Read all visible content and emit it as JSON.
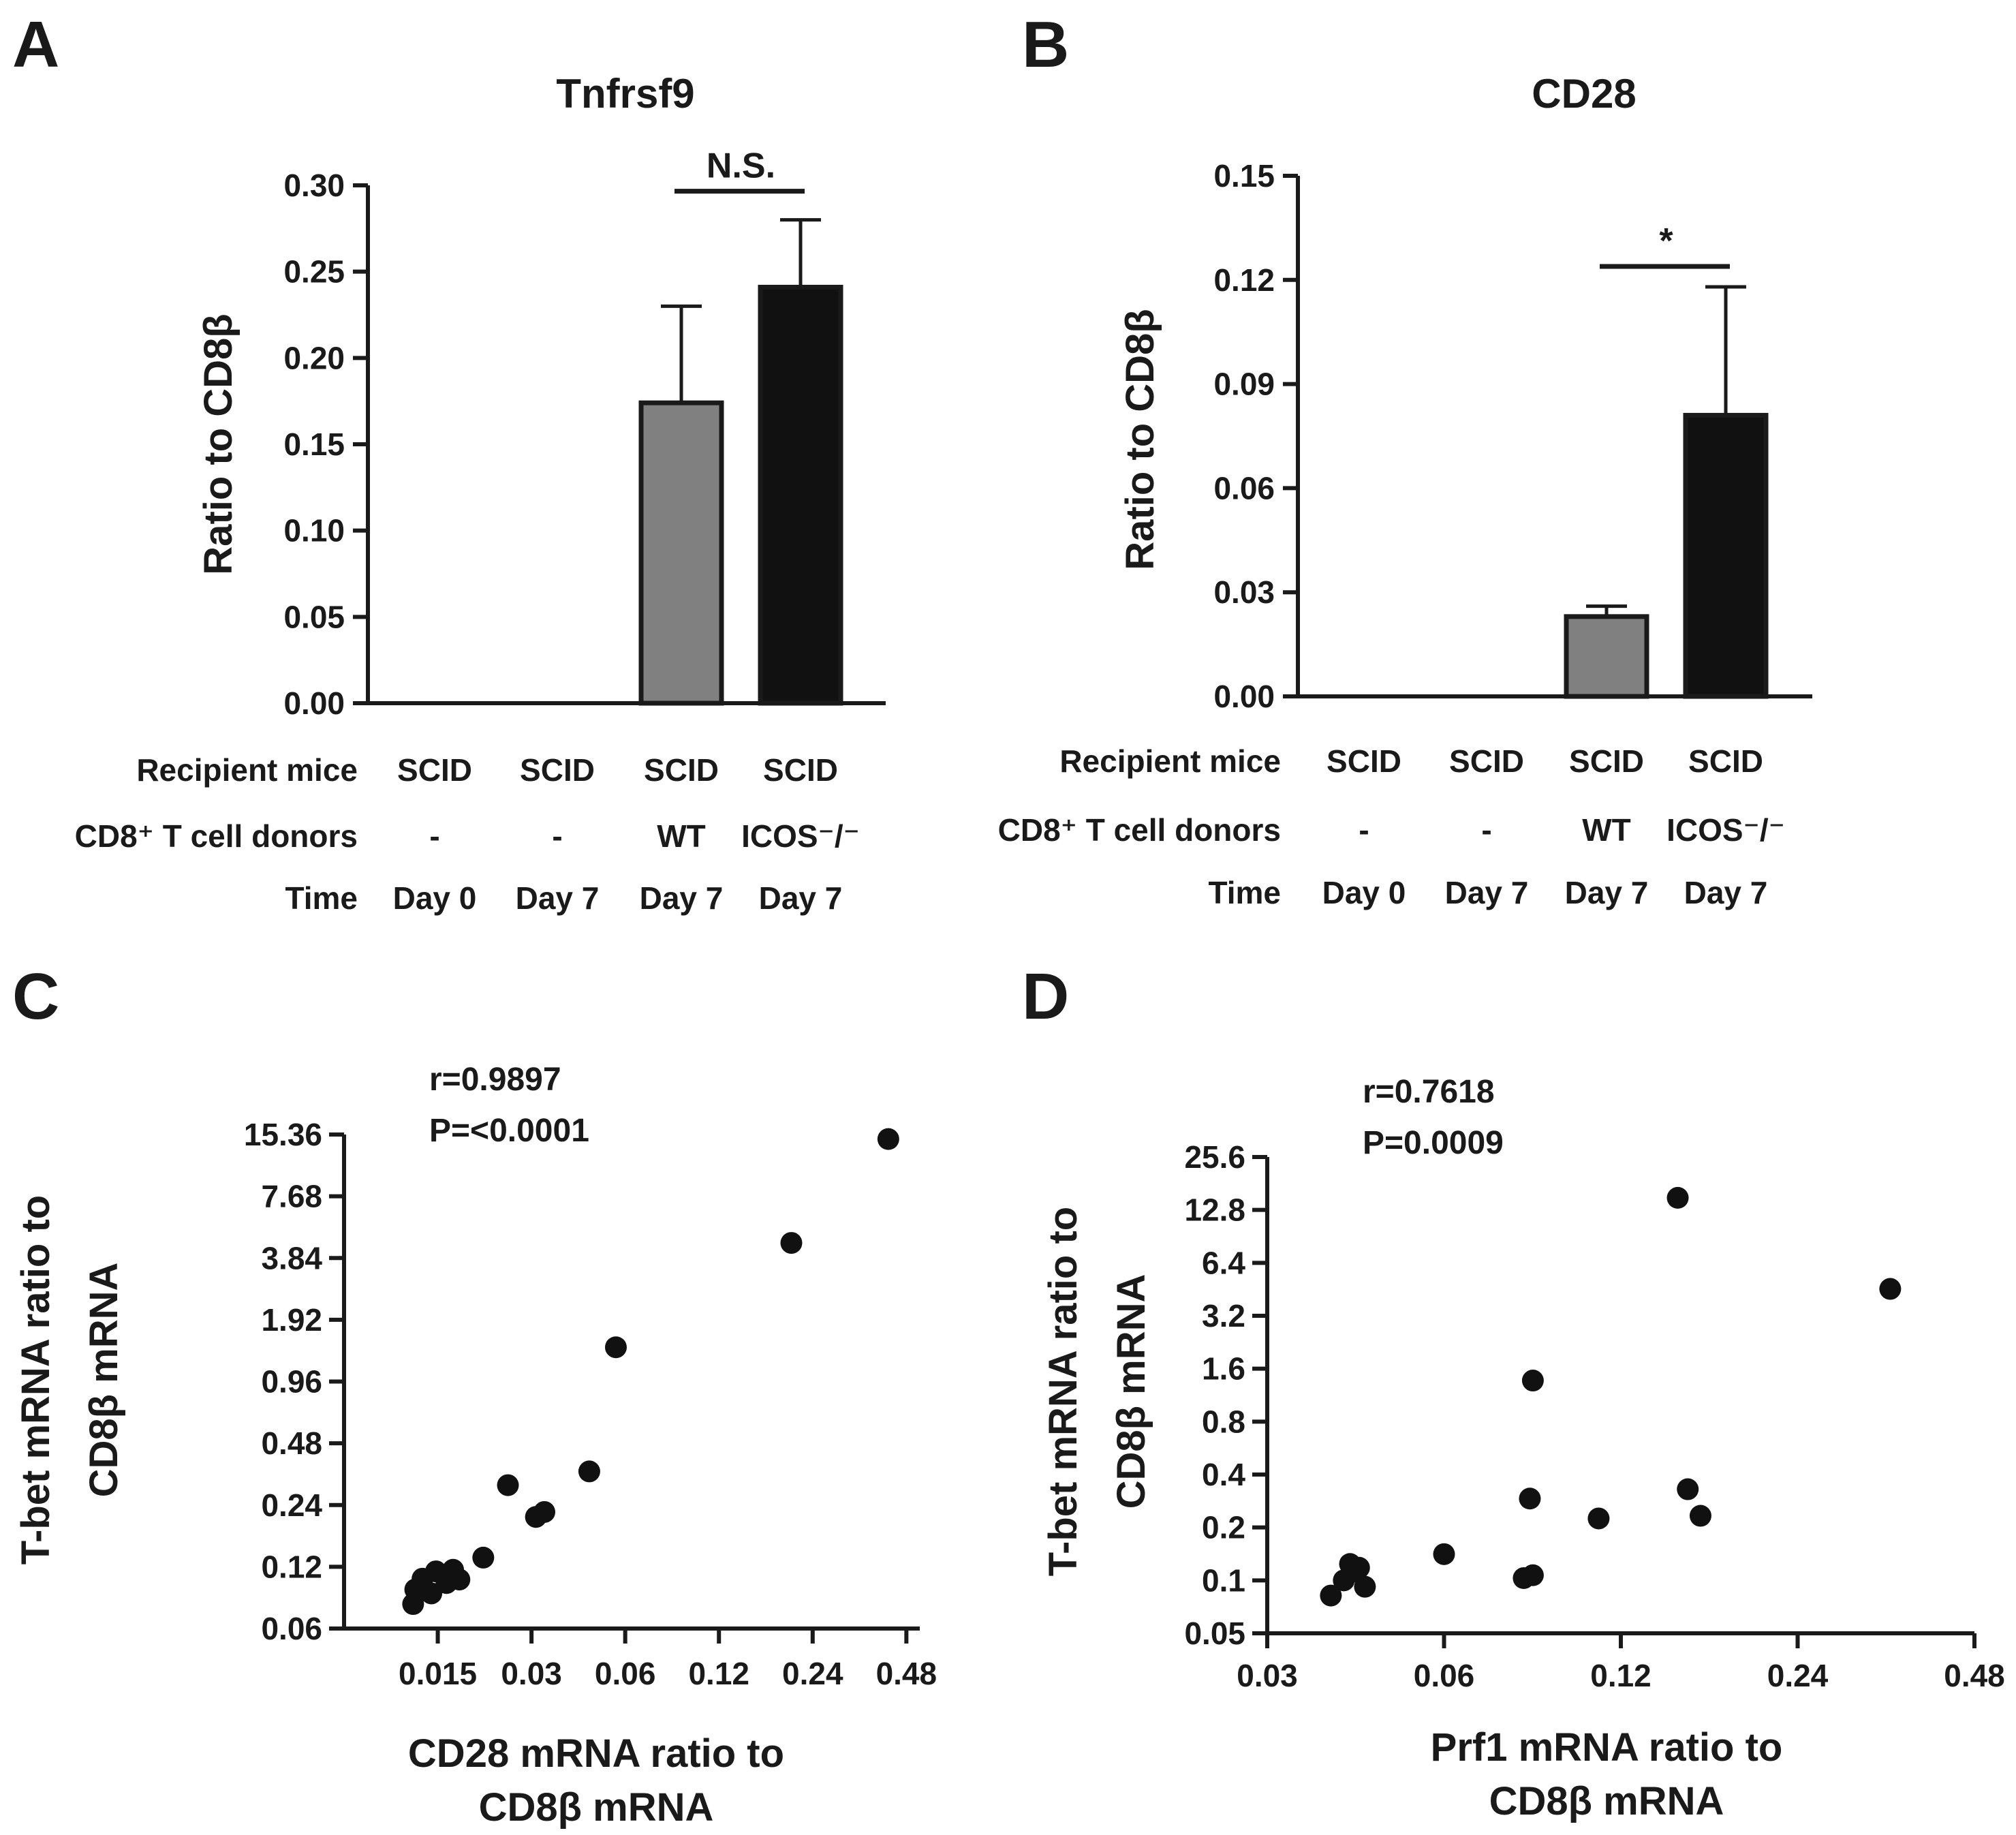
{
  "panels": [
    {
      "letter": "A",
      "chart_data": {
        "type": "bar",
        "title": "Tnfrsf9",
        "ylabel": "Ratio to CD8β",
        "ylim": [
          0,
          0.3
        ],
        "yticks": [
          "0.00",
          "0.05",
          "0.10",
          "0.15",
          "0.20",
          "0.25",
          "0.30"
        ],
        "row_labels": [
          "Recipient mice",
          "CD8⁺ T cell donors",
          "Time"
        ],
        "categories": [
          {
            "recipient": "SCID",
            "donor": "-",
            "time": "Day 0"
          },
          {
            "recipient": "SCID",
            "donor": "-",
            "time": "Day 7"
          },
          {
            "recipient": "SCID",
            "donor": "WT",
            "time": "Day 7"
          },
          {
            "recipient": "SCID",
            "donor": "ICOS⁻/⁻",
            "time": "Day 7"
          }
        ],
        "values": [
          0,
          0,
          0.174,
          0.241
        ],
        "errors": [
          0,
          0,
          0.056,
          0.039
        ],
        "bar_colors": [
          "#808080",
          "#808080",
          "#808080",
          "#111111"
        ],
        "significance": {
          "between": [
            2,
            3
          ],
          "label": "N.S."
        }
      }
    },
    {
      "letter": "B",
      "chart_data": {
        "type": "bar",
        "title": "CD28",
        "ylabel": "Ratio to CD8β",
        "ylim": [
          0,
          0.15
        ],
        "yticks": [
          "0.00",
          "0.03",
          "0.06",
          "0.09",
          "0.12",
          "0.15"
        ],
        "row_labels": [
          "Recipient mice",
          "CD8⁺ T cell donors",
          "Time"
        ],
        "categories": [
          {
            "recipient": "SCID",
            "donor": "-",
            "time": "Day 0"
          },
          {
            "recipient": "SCID",
            "donor": "-",
            "time": "Day 7"
          },
          {
            "recipient": "SCID",
            "donor": "WT",
            "time": "Day 7"
          },
          {
            "recipient": "SCID",
            "donor": "ICOS⁻/⁻",
            "time": "Day 7"
          }
        ],
        "values": [
          0,
          0,
          0.023,
          0.081
        ],
        "errors": [
          0,
          0,
          0.003,
          0.037
        ],
        "bar_colors": [
          "#808080",
          "#808080",
          "#808080",
          "#111111"
        ],
        "significance": {
          "between": [
            2,
            3
          ],
          "label": "*"
        }
      }
    },
    {
      "letter": "C",
      "chart_data": {
        "type": "scatter",
        "xscale": "log2",
        "yscale": "log2",
        "xlabel": "CD28 mRNA ratio to CD8β mRNA",
        "xlabel_lines": [
          "CD28 mRNA ratio to",
          "CD8β mRNA"
        ],
        "ylabel_lines": [
          "T-bet mRNA ratio to",
          "CD8β mRNA"
        ],
        "xlim": [
          0.0075,
          0.53
        ],
        "ylim": [
          0.06,
          15.36
        ],
        "xticks": [
          0.015,
          0.03,
          0.06,
          0.12,
          0.24,
          0.48
        ],
        "xtick_labels": [
          "0.015",
          "0.03",
          "0.06",
          "0.12",
          "0.24",
          "0.48"
        ],
        "yticks": [
          0.06,
          0.12,
          0.24,
          0.48,
          0.96,
          1.92,
          3.84,
          7.68,
          15.36
        ],
        "ytick_labels": [
          "0.06",
          "0.12",
          "0.24",
          "0.48",
          "0.96",
          "1.92",
          "3.84",
          "7.68",
          "15.36"
        ],
        "annotation": [
          "r=0.9897",
          "P=<0.0001"
        ],
        "points": [
          {
            "x": 0.0125,
            "y": 0.079
          },
          {
            "x": 0.0127,
            "y": 0.093
          },
          {
            "x": 0.0134,
            "y": 0.105
          },
          {
            "x": 0.0143,
            "y": 0.089
          },
          {
            "x": 0.0148,
            "y": 0.114
          },
          {
            "x": 0.016,
            "y": 0.1
          },
          {
            "x": 0.0168,
            "y": 0.116
          },
          {
            "x": 0.0176,
            "y": 0.104
          },
          {
            "x": 0.021,
            "y": 0.133
          },
          {
            "x": 0.0252,
            "y": 0.3
          },
          {
            "x": 0.031,
            "y": 0.21
          },
          {
            "x": 0.033,
            "y": 0.222
          },
          {
            "x": 0.046,
            "y": 0.35
          },
          {
            "x": 0.056,
            "y": 1.41
          },
          {
            "x": 0.205,
            "y": 4.55
          },
          {
            "x": 0.42,
            "y": 14.6
          }
        ]
      }
    },
    {
      "letter": "D",
      "chart_data": {
        "type": "scatter",
        "xscale": "log2",
        "yscale": "log2",
        "xlabel": "Prf1 mRNA ratio to CD8β mRNA",
        "xlabel_lines": [
          "Prf1 mRNA ratio to",
          "CD8β mRNA"
        ],
        "ylabel_lines": [
          "T-bet mRNA ratio to",
          "CD8β mRNA"
        ],
        "xlim": [
          0.03,
          0.48
        ],
        "ylim": [
          0.05,
          25.6
        ],
        "xticks": [
          0.03,
          0.06,
          0.12,
          0.24,
          0.48
        ],
        "xtick_labels": [
          "0.03",
          "0.06",
          "0.12",
          "0.24",
          "0.48"
        ],
        "yticks": [
          0.05,
          0.1,
          0.2,
          0.4,
          0.8,
          1.6,
          3.2,
          6.4,
          12.8,
          25.6
        ],
        "ytick_labels": [
          "0.05",
          "0.1",
          "0.2",
          "0.4",
          "0.8",
          "1.6",
          "3.2",
          "6.4",
          "12.8",
          "25.6"
        ],
        "annotation": [
          "r=0.7618",
          "P=0.0009"
        ],
        "points": [
          {
            "x": 0.0385,
            "y": 0.082
          },
          {
            "x": 0.0405,
            "y": 0.1
          },
          {
            "x": 0.0415,
            "y": 0.124
          },
          {
            "x": 0.042,
            "y": 0.112
          },
          {
            "x": 0.043,
            "y": 0.118
          },
          {
            "x": 0.044,
            "y": 0.092
          },
          {
            "x": 0.06,
            "y": 0.141
          },
          {
            "x": 0.082,
            "y": 0.103
          },
          {
            "x": 0.085,
            "y": 0.107
          },
          {
            "x": 0.084,
            "y": 0.292
          },
          {
            "x": 0.085,
            "y": 1.37
          },
          {
            "x": 0.11,
            "y": 0.225
          },
          {
            "x": 0.15,
            "y": 15.0
          },
          {
            "x": 0.156,
            "y": 0.33
          },
          {
            "x": 0.164,
            "y": 0.233
          },
          {
            "x": 0.345,
            "y": 4.55
          }
        ]
      }
    }
  ]
}
